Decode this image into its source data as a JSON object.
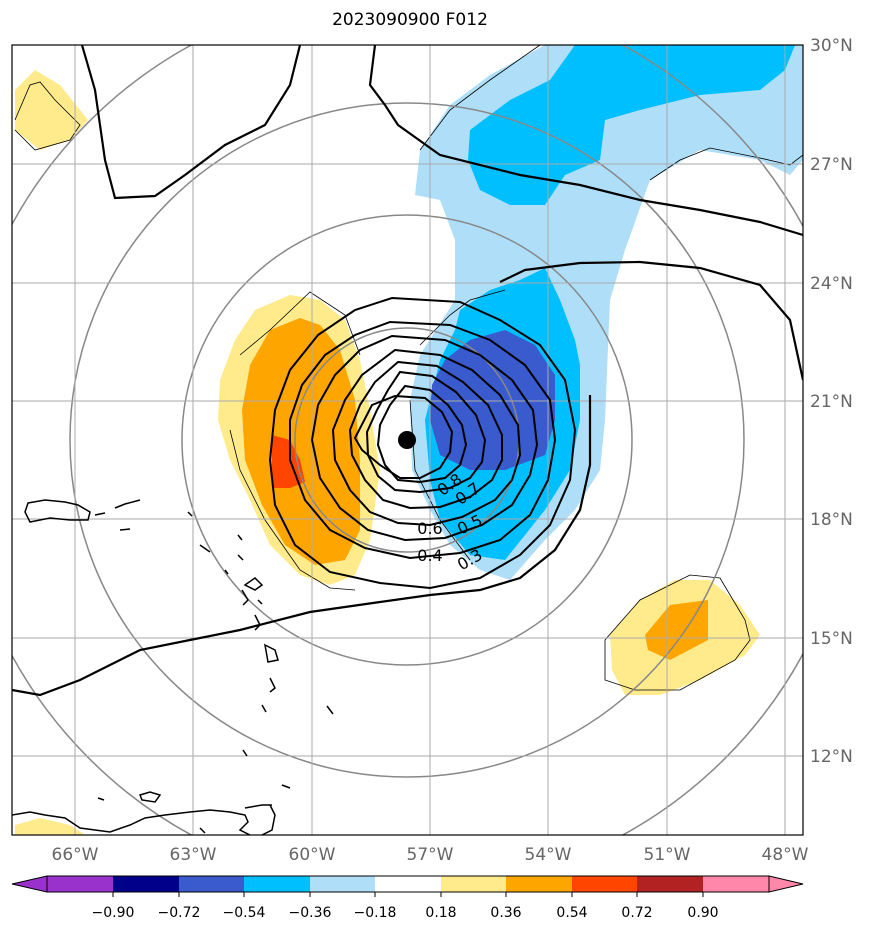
{
  "title": "2023090900 F012",
  "map": {
    "lat_labels": [
      "30°N",
      "27°N",
      "24°N",
      "21°N",
      "18°N",
      "15°N",
      "12°N"
    ],
    "lon_labels": [
      "66°W",
      "63°W",
      "60°W",
      "57°W",
      "54°W",
      "51°W",
      "48°W"
    ],
    "contour_labels": [
      "0.8",
      "0.7",
      "0.6",
      "0.5",
      "0.4",
      "0.3"
    ],
    "center_marker": "storm-center"
  },
  "colorbar": {
    "ticks": [
      "−0.90",
      "−0.72",
      "−0.54",
      "−0.36",
      "−0.18",
      "0.18",
      "0.36",
      "0.54",
      "0.72",
      "0.90"
    ],
    "colors": [
      "#9932cc",
      "#00008b",
      "#3a5bcd",
      "#00bfff",
      "#afdff8",
      "#ffffff",
      "#ffeb8c",
      "#ffa500",
      "#ff4500",
      "#b22222",
      "#ff88aa"
    ]
  }
}
